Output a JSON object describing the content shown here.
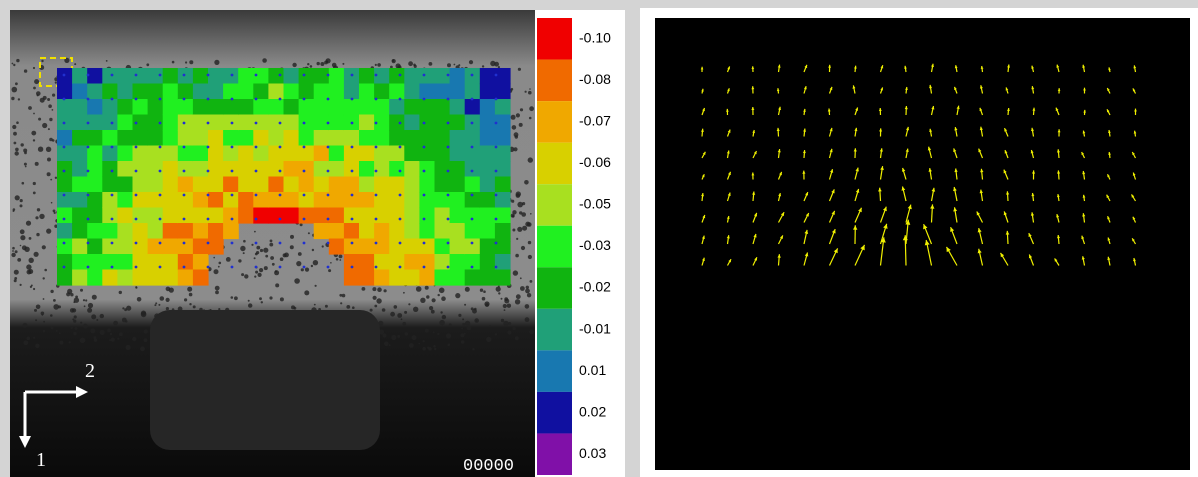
{
  "colorbar": {
    "labels": [
      "-0.10",
      "-0.08",
      "-0.07",
      "-0.06",
      "-0.05",
      "-0.03",
      "-0.02",
      "-0.01",
      "0.01",
      "0.02",
      "0.03"
    ],
    "colors": [
      "#f00000",
      "#f06a00",
      "#f0a800",
      "#d8d000",
      "#a8e020",
      "#20f020",
      "#10b410",
      "#20a078",
      "#1878b0",
      "#1010a0",
      "#8010a8"
    ]
  },
  "axes": {
    "direction_1": "1",
    "direction_2": "2"
  },
  "frame_counter": "00000"
}
